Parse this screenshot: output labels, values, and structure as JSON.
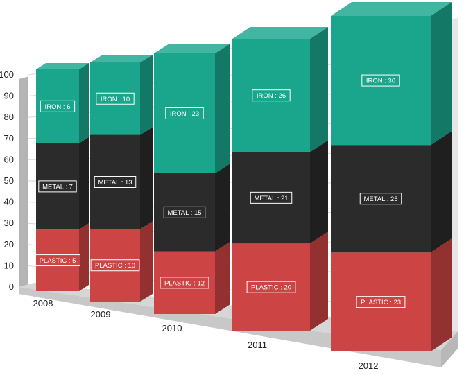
{
  "chart_data": {
    "type": "bar",
    "stacked": "percent",
    "style": "3d-column",
    "categories": [
      "2008",
      "2009",
      "2010",
      "2011",
      "2012"
    ],
    "series": [
      {
        "name": "PLASTIC",
        "color": "#cc4444",
        "values": [
          5,
          10,
          12,
          20,
          23
        ]
      },
      {
        "name": "METAL",
        "color": "#2b2b2b",
        "values": [
          7,
          13,
          15,
          21,
          25
        ]
      },
      {
        "name": "IRON",
        "color": "#1aa68c",
        "values": [
          6,
          10,
          23,
          26,
          30
        ]
      }
    ],
    "data_labels": [
      [
        "PLASTIC : 5",
        "PLASTIC : 10",
        "PLASTIC : 12",
        "PLASTIC : 20",
        "PLASTIC : 23"
      ],
      [
        "METAL : 7",
        "METAL : 13",
        "METAL : 15",
        "METAL : 21",
        "METAL : 25"
      ],
      [
        "IRON : 6",
        "IRON : 10",
        "IRON : 23",
        "IRON : 26",
        "IRON : 30"
      ]
    ],
    "ylim": [
      0,
      100
    ],
    "y_ticks": [
      "0",
      "10",
      "20",
      "30",
      "40",
      "50",
      "60",
      "70",
      "80",
      "90",
      "100"
    ],
    "grid": true,
    "legend": "none",
    "title": "",
    "xlabel": "",
    "ylabel": ""
  }
}
